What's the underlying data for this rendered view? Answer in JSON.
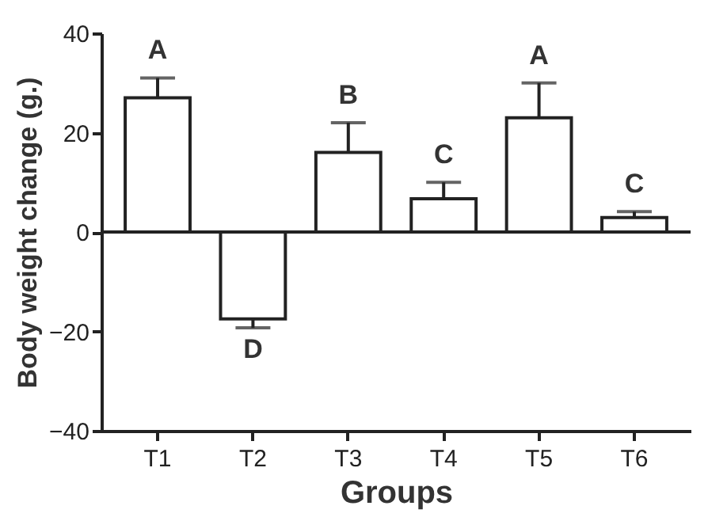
{
  "chart_data": {
    "type": "bar",
    "xlabel": "Groups",
    "ylabel": "Body weight change (g.)",
    "categories": [
      "T1",
      "T2",
      "T3",
      "T4",
      "T5",
      "T6"
    ],
    "values": [
      27,
      -17.5,
      16,
      6.7,
      23,
      2.9
    ],
    "errors": [
      [
        27,
        31
      ],
      [
        -19.3,
        -17.5
      ],
      [
        16,
        22
      ],
      [
        6.7,
        10
      ],
      [
        23,
        30
      ],
      [
        2.9,
        4.1
      ]
    ],
    "color": "#ffffff",
    "ylim": [
      -40,
      40
    ],
    "yticks": [
      -40,
      -20,
      0,
      20,
      40
    ],
    "grid": false,
    "ref_lines": [
      {
        "axis": "y",
        "value": 0
      }
    ],
    "annotations": [
      {
        "text": "A",
        "x": "T1",
        "y": 31
      },
      {
        "text": "D",
        "x": "T2",
        "y": -19.3
      },
      {
        "text": "B",
        "x": "T3",
        "y": 22
      },
      {
        "text": "C",
        "x": "T4",
        "y": 10
      },
      {
        "text": "A",
        "x": "T5",
        "y": 30
      },
      {
        "text": "C",
        "x": "T6",
        "y": 4.1
      }
    ]
  }
}
